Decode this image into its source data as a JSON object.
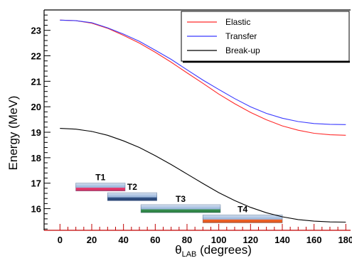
{
  "chart_data": {
    "type": "line",
    "xlabel_main": "θ",
    "xlabel_sub": "LAB",
    "xlabel_unit": " (degrees)",
    "ylabel": "Energy (MeV)",
    "xlim": [
      -10,
      183
    ],
    "ylim": [
      15.15,
      23.8
    ],
    "x_ticks": [
      0,
      20,
      40,
      60,
      80,
      100,
      120,
      140,
      160,
      180
    ],
    "y_ticks": [
      16,
      17,
      18,
      19,
      20,
      21,
      22,
      23
    ],
    "legend_position": "top-right",
    "series": [
      {
        "name": "Elastic",
        "color": "#ff2a2a",
        "x": [
          0,
          10,
          20,
          30,
          40,
          50,
          60,
          70,
          80,
          90,
          100,
          110,
          120,
          130,
          140,
          150,
          160,
          170,
          180
        ],
        "y": [
          23.4,
          23.38,
          23.28,
          23.08,
          22.8,
          22.5,
          22.14,
          21.75,
          21.33,
          20.92,
          20.5,
          20.12,
          19.78,
          19.49,
          19.25,
          19.08,
          18.96,
          18.9,
          18.88
        ]
      },
      {
        "name": "Transfer",
        "color": "#3a3aff",
        "x": [
          0,
          10,
          20,
          30,
          40,
          50,
          60,
          70,
          80,
          90,
          100,
          110,
          120,
          130,
          140,
          150,
          160,
          170,
          180
        ],
        "y": [
          23.4,
          23.38,
          23.3,
          23.1,
          22.85,
          22.57,
          22.22,
          21.86,
          21.45,
          21.05,
          20.68,
          20.32,
          20.0,
          19.74,
          19.55,
          19.42,
          19.34,
          19.31,
          19.3
        ]
      },
      {
        "name": "Break-up",
        "color": "#000000",
        "x": [
          0,
          10,
          20,
          30,
          40,
          50,
          60,
          70,
          80,
          90,
          100,
          110,
          120,
          130,
          140,
          150,
          160,
          170,
          180
        ],
        "y": [
          19.15,
          19.12,
          19.03,
          18.88,
          18.66,
          18.4,
          18.08,
          17.73,
          17.36,
          16.99,
          16.63,
          16.32,
          16.05,
          15.84,
          15.68,
          15.57,
          15.51,
          15.48,
          15.47
        ]
      }
    ],
    "ranges": [
      {
        "label": "T1",
        "x_start": 10,
        "x_end": 41,
        "y_center": 16.85,
        "color": "#e8326a"
      },
      {
        "label": "T2",
        "x_start": 30,
        "x_end": 61,
        "y_center": 16.47,
        "color": "#2a4a80"
      },
      {
        "label": "T3",
        "x_start": 51,
        "x_end": 101,
        "y_center": 16.0,
        "color": "#2e8b47"
      },
      {
        "label": "T4",
        "x_start": 90,
        "x_end": 140,
        "y_center": 15.6,
        "color": "#f25c1e"
      }
    ]
  }
}
